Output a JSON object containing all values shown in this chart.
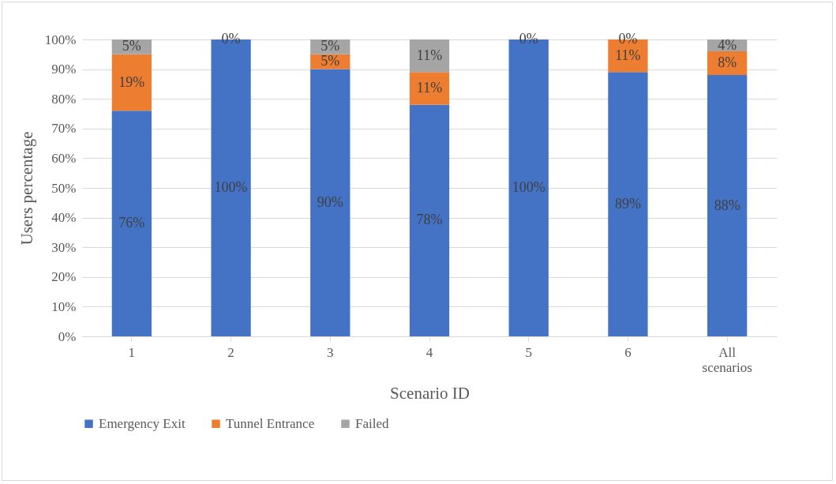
{
  "chart_data": {
    "type": "bar",
    "stacked": true,
    "xlabel": "Scenario ID",
    "ylabel": "Users percentage",
    "categories": [
      "1",
      "2",
      "3",
      "4",
      "5",
      "6",
      "All scenarios"
    ],
    "series": [
      {
        "name": "Emergency Exit",
        "color": "#4472c4",
        "values": [
          76,
          100,
          90,
          78,
          100,
          89,
          88
        ],
        "value_labels": [
          "76%",
          "100%",
          "90%",
          "78%",
          "100%",
          "89%",
          "88%"
        ]
      },
      {
        "name": "Tunnel Entrance",
        "color": "#ed7d31",
        "values": [
          19,
          0,
          5,
          11,
          0,
          11,
          8
        ],
        "value_labels": [
          "19%",
          "0%",
          "5%",
          "11%",
          "0%",
          "11%",
          "8%"
        ]
      },
      {
        "name": "Failed",
        "color": "#a5a5a5",
        "values": [
          5,
          0,
          5,
          11,
          0,
          0,
          4
        ],
        "value_labels": [
          "5%",
          null,
          "5%",
          "11%",
          null,
          "0%",
          "4%"
        ]
      }
    ],
    "ylim": [
      0,
      100
    ],
    "yticks": [
      {
        "value": 0,
        "label": "0%"
      },
      {
        "value": 10,
        "label": "10%"
      },
      {
        "value": 20,
        "label": "20%"
      },
      {
        "value": 30,
        "label": "30%"
      },
      {
        "value": 40,
        "label": "40%"
      },
      {
        "value": 50,
        "label": "50%"
      },
      {
        "value": 60,
        "label": "60%"
      },
      {
        "value": 70,
        "label": "70%"
      },
      {
        "value": 80,
        "label": "80%"
      },
      {
        "value": 90,
        "label": "90%"
      },
      {
        "value": 100,
        "label": "100%"
      }
    ],
    "grid": "y",
    "legend": "bottom"
  }
}
